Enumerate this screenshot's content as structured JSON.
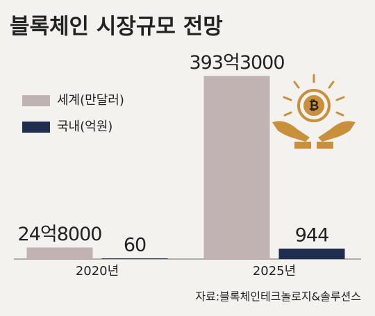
{
  "chart_data": {
    "type": "bar",
    "title": "블록체인 시장규모 전망",
    "categories": [
      "2020년",
      "2025년"
    ],
    "series": [
      {
        "name": "세계(만달러)",
        "color": "#c0b3b1",
        "values": [
          248000,
          3933000
        ],
        "value_labels": [
          "24억8000",
          "393억3000"
        ]
      },
      {
        "name": "국내(억원)",
        "color": "#1f2d4e",
        "values": [
          60,
          944
        ],
        "axis": "y2"
      }
    ],
    "ylim": [
      0,
      4400000
    ],
    "y2lim": [
      0,
      18500
    ],
    "source": "자료:블록체인테크놀로지&솔루션스"
  }
}
